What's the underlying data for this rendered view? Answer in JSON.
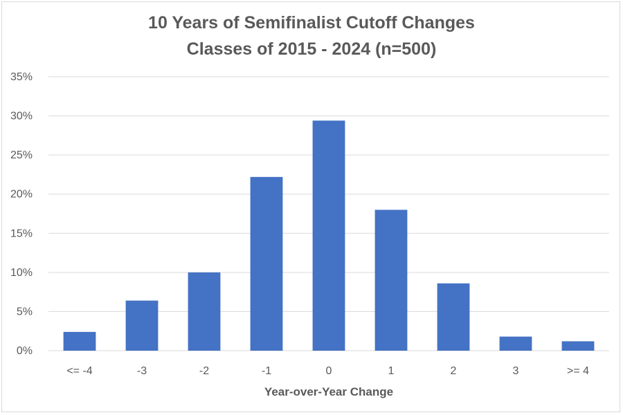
{
  "chart_data": {
    "type": "bar",
    "title": "10 Years of Semifinalist Cutoff Changes",
    "subtitle": "Classes of 2015 - 2024 (n=500)",
    "xlabel": "Year-over-Year Change",
    "ylabel": "",
    "categories": [
      "<= -4",
      "-3",
      "-2",
      "-1",
      "0",
      "1",
      "2",
      "3",
      ">= 4"
    ],
    "values": [
      2.4,
      6.4,
      10.0,
      22.2,
      29.4,
      18.0,
      8.6,
      1.8,
      1.2
    ],
    "ylim": [
      0,
      35
    ],
    "yticks": [
      0,
      5,
      10,
      15,
      20,
      25,
      30,
      35
    ],
    "ytick_suffix": "%",
    "grid": true,
    "bar_color": "#4472c4",
    "legend": "none"
  }
}
